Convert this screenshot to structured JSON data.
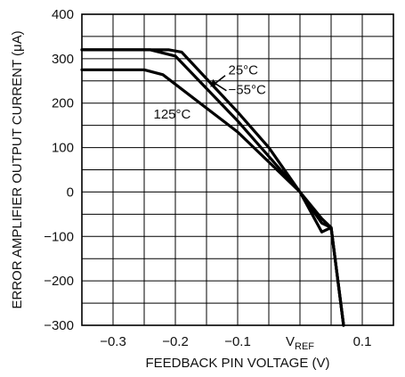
{
  "chart_data": {
    "type": "line",
    "xlabel": "FEEDBACK PIN VOLTAGE (V)",
    "ylabel": "ERROR AMPLIFIER OUTPUT CURRENT (μA)",
    "xlim": [
      -0.35,
      0.15
    ],
    "ylim": [
      -300,
      400
    ],
    "grid": true,
    "x_ticks": [
      {
        "value": -0.3,
        "label": "−0.3"
      },
      {
        "value": -0.2,
        "label": "−0.2"
      },
      {
        "value": -0.1,
        "label": "−0.1"
      },
      {
        "value": 0.0,
        "label": "V",
        "sub": "REF"
      },
      {
        "value": 0.1,
        "label": "0.1"
      }
    ],
    "y_ticks": [
      {
        "value": 400,
        "label": "400"
      },
      {
        "value": 300,
        "label": "300"
      },
      {
        "value": 200,
        "label": "200"
      },
      {
        "value": 100,
        "label": "100"
      },
      {
        "value": 0,
        "label": "0"
      },
      {
        "value": -100,
        "label": "−100"
      },
      {
        "value": -200,
        "label": "−200"
      },
      {
        "value": -300,
        "label": "−300"
      }
    ],
    "series": [
      {
        "name": "25°C",
        "points": [
          [
            -0.35,
            320
          ],
          [
            -0.21,
            320
          ],
          [
            -0.19,
            315
          ],
          [
            -0.1,
            180
          ],
          [
            -0.05,
            100
          ],
          [
            0.0,
            0
          ],
          [
            0.035,
            -60
          ],
          [
            0.05,
            -80
          ],
          [
            0.07,
            -300
          ]
        ]
      },
      {
        "name": "−55°C",
        "points": [
          [
            -0.35,
            320
          ],
          [
            -0.24,
            320
          ],
          [
            -0.2,
            306
          ],
          [
            -0.1,
            160
          ],
          [
            -0.05,
            80
          ],
          [
            0.0,
            0
          ],
          [
            0.035,
            -70
          ],
          [
            0.05,
            -80
          ],
          [
            0.07,
            -300
          ]
        ]
      },
      {
        "name": "125°C",
        "points": [
          [
            -0.35,
            275
          ],
          [
            -0.25,
            275
          ],
          [
            -0.22,
            264
          ],
          [
            -0.1,
            135
          ],
          [
            0.0,
            0
          ],
          [
            0.035,
            -90
          ],
          [
            0.05,
            -80
          ],
          [
            0.07,
            -300
          ]
        ]
      }
    ],
    "annotations": [
      {
        "text": "25°C",
        "x": -0.115,
        "y": 265
      },
      {
        "text": "−55°C",
        "x": -0.115,
        "y": 220
      },
      {
        "text": "125°C",
        "x": -0.235,
        "y": 165
      }
    ]
  }
}
